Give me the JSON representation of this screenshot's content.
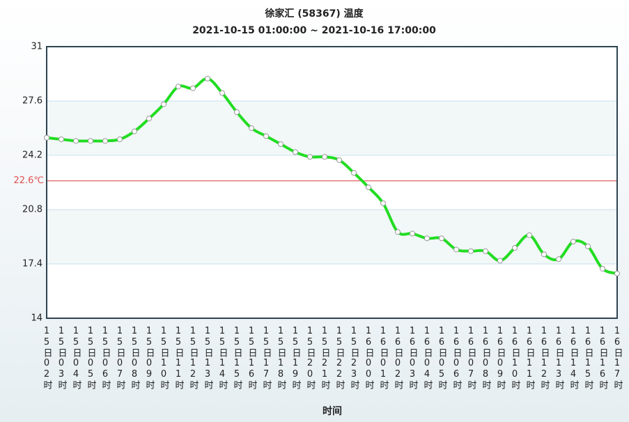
{
  "chart_data": {
    "type": "line",
    "title": "徐家汇 (58367) 温度",
    "subtitle": "2021-10-15 01:00:00 ~ 2021-10-16 17:00:00",
    "x_label": "时间",
    "categories": [
      "15日02时",
      "15日03时",
      "15日04时",
      "15日05时",
      "15日06时",
      "15日07时",
      "15日08时",
      "15日09时",
      "15日10时",
      "15日11时",
      "15日12时",
      "15日13时",
      "15日14时",
      "15日15时",
      "15日16时",
      "15日17时",
      "15日18时",
      "15日19时",
      "15日20时",
      "15日21时",
      "15日22时",
      "15日23时",
      "16日00时",
      "16日01时",
      "16日02时",
      "16日03时",
      "16日04时",
      "16日05时",
      "16日06时",
      "16日07时",
      "16日08时",
      "16日09时",
      "16日10时",
      "16日11时",
      "16日12时",
      "16日13时",
      "16日14时",
      "16日15时",
      "16日16时",
      "16日17时"
    ],
    "series": [
      {
        "color": "#22dd22",
        "values": [
          25.3,
          25.2,
          25.1,
          25.1,
          25.1,
          25.2,
          25.7,
          26.5,
          27.4,
          28.5,
          28.4,
          29.0,
          28.1,
          26.9,
          25.9,
          25.4,
          24.9,
          24.4,
          24.1,
          24.1,
          23.9,
          23.1,
          22.2,
          21.2,
          19.4,
          19.3,
          19.0,
          19.0,
          18.3,
          18.2,
          18.2,
          17.6,
          18.4,
          19.2,
          18.0,
          17.7,
          18.8,
          18.5,
          17.1,
          16.8
        ]
      }
    ],
    "ylim": [
      14,
      31
    ],
    "yticks": [
      14,
      17.4,
      20.8,
      24.2,
      27.6,
      31
    ],
    "reference_line": {
      "value": 22.6,
      "label": "22.6℃",
      "color": "#e05050"
    },
    "grid": true
  }
}
